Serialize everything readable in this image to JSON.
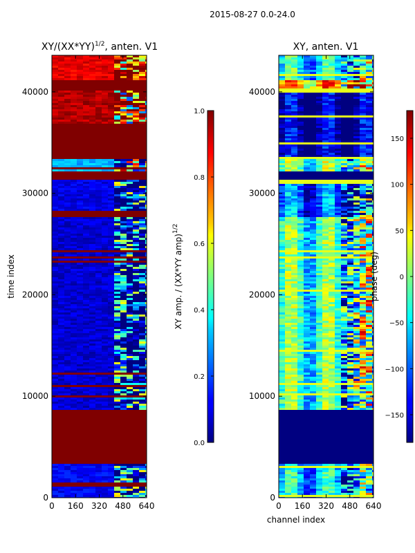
{
  "figure": {
    "suptitle": "2015-08-27 0.0-24.0"
  },
  "chart_data": [
    {
      "type": "heatmap",
      "title": "XY/(XX*YY)",
      "title_superscript": "1/2",
      "title_suffix": ", anten. V1",
      "xlabel": "",
      "ylabel": "time index",
      "xlim": [
        0,
        640
      ],
      "ylim": [
        0,
        43600
      ],
      "xticks": [
        0,
        160,
        320,
        480,
        640
      ],
      "yticks": [
        0,
        10000,
        20000,
        30000,
        40000
      ],
      "xtick_labels": [
        "0",
        "160",
        "320",
        "480",
        "640"
      ],
      "ytick_labels": [
        "0",
        "10000",
        "20000",
        "30000",
        "40000"
      ],
      "colormap": "jet",
      "colorbar": {
        "label": "XY amp. / (XX*YY amp)",
        "label_superscript": "1/2",
        "range": [
          0.0,
          1.0
        ],
        "ticks": [
          0.0,
          0.2,
          0.4,
          0.6,
          0.8,
          1.0
        ],
        "tick_labels": [
          "0.0",
          "0.2",
          "0.4",
          "0.6",
          "0.8",
          "1.0"
        ]
      },
      "bands": [
        {
          "y0": 0,
          "y1": 3500,
          "value": 0.12,
          "active": 0.55
        },
        {
          "y0": 3500,
          "y1": 8700,
          "value": 1.0
        },
        {
          "y0": 8700,
          "y1": 27700,
          "value": 0.08,
          "active": 0.55
        },
        {
          "y0": 27700,
          "y1": 28300,
          "value": 1.0
        },
        {
          "y0": 28300,
          "y1": 31400,
          "value": 0.1,
          "active": 0.6
        },
        {
          "y0": 31400,
          "y1": 32300,
          "value": 1.0
        },
        {
          "y0": 32300,
          "y1": 33600,
          "value": 0.3,
          "active": 0.7
        },
        {
          "y0": 33600,
          "y1": 37000,
          "value": 1.0
        },
        {
          "y0": 37000,
          "y1": 40200,
          "value": 0.95,
          "active": 0.8
        },
        {
          "y0": 40200,
          "y1": 41300,
          "value": 1.0
        },
        {
          "y0": 41300,
          "y1": 43600,
          "value": 0.9,
          "active": 0.5
        }
      ]
    },
    {
      "type": "heatmap",
      "title": "XY, anten. V1",
      "xlabel": "channel index",
      "ylabel": "",
      "xlim": [
        0,
        640
      ],
      "ylim": [
        0,
        43600
      ],
      "xticks": [
        0,
        160,
        320,
        480,
        640
      ],
      "yticks": [
        0,
        10000,
        20000,
        30000,
        40000
      ],
      "xtick_labels": [
        "0",
        "160",
        "320",
        "480",
        "640"
      ],
      "ytick_labels": [
        "0",
        "10000",
        "20000",
        "30000",
        "40000"
      ],
      "colormap": "jet",
      "colorbar": {
        "label": "phase (deg)",
        "range": [
          -180,
          180
        ],
        "ticks": [
          -150,
          -100,
          -50,
          0,
          50,
          100,
          150
        ],
        "tick_labels": [
          "−150",
          "−100",
          "−50",
          "0",
          "50",
          "100",
          "150"
        ]
      },
      "bands": [
        {
          "y0": 0,
          "y1": 3500,
          "value": 0.3,
          "active": 0.7
        },
        {
          "y0": 3500,
          "y1": 8700,
          "value": 0.0
        },
        {
          "y0": 8700,
          "y1": 27700,
          "value": 0.42,
          "active": 0.75
        },
        {
          "y0": 27700,
          "y1": 31400,
          "value": 0.2,
          "active": 0.8
        },
        {
          "y0": 31400,
          "y1": 32300,
          "value": 0.0
        },
        {
          "y0": 32300,
          "y1": 33600,
          "value": 0.45,
          "active": 0.6
        },
        {
          "y0": 33600,
          "y1": 40200,
          "value": 0.02,
          "active": 0.2
        },
        {
          "y0": 40200,
          "y1": 41300,
          "value": 0.7,
          "active": 0.9
        },
        {
          "y0": 41300,
          "y1": 43600,
          "value": 0.35,
          "active": 0.7
        }
      ]
    }
  ]
}
